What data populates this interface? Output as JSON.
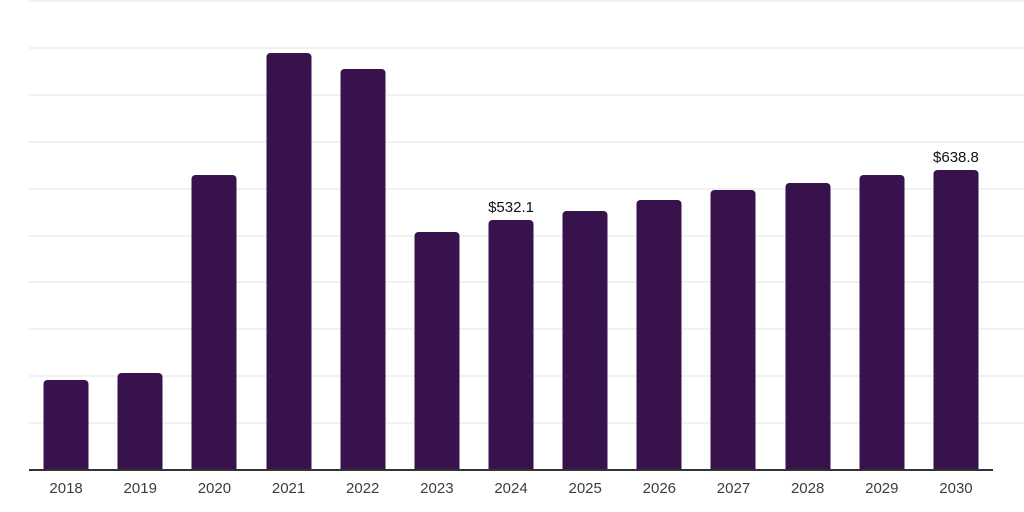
{
  "chart_data": {
    "type": "bar",
    "title": "",
    "xlabel": "",
    "ylabel": "",
    "categories": [
      "2018",
      "2019",
      "2020",
      "2021",
      "2022",
      "2023",
      "2024",
      "2025",
      "2026",
      "2027",
      "2028",
      "2029",
      "2030"
    ],
    "values": [
      192,
      207,
      629,
      890,
      854,
      507,
      532.1,
      553,
      576,
      596,
      613,
      629,
      638.8
    ],
    "data_labels": [
      "",
      "",
      "",
      "",
      "",
      "",
      "$532.1",
      "",
      "",
      "",
      "",
      "",
      "$638.8"
    ],
    "ylim": [
      0,
      1000
    ],
    "gridline_step": 100,
    "grid": "on",
    "legend": "none",
    "colors": {
      "bar": "#38124c",
      "gridline": "#f1f1f2",
      "axis_line": "#333333",
      "tick_label": "#3d3d3d",
      "data_label": "#111111"
    }
  }
}
